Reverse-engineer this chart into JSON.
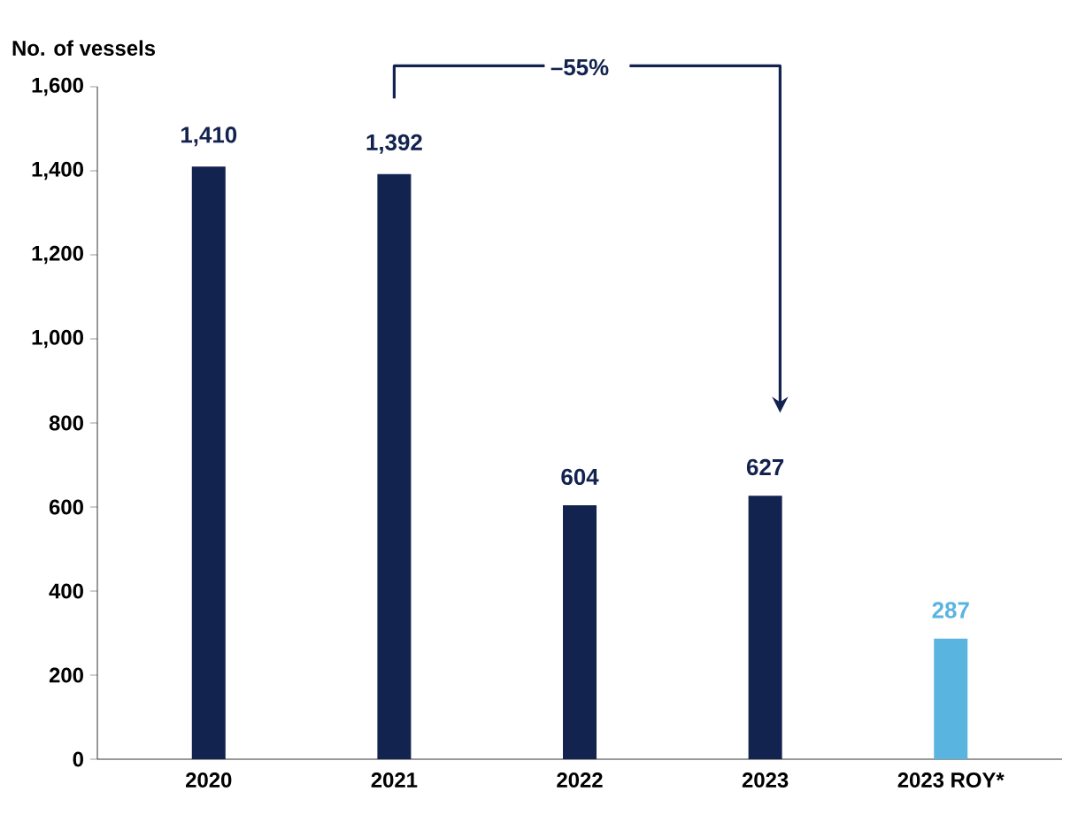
{
  "chart_data": {
    "type": "bar",
    "ylabel": "No. of vessels",
    "categories": [
      "2020",
      "2021",
      "2022",
      "2023",
      "2023 ROY*"
    ],
    "values": [
      1410,
      1392,
      604,
      627,
      287
    ],
    "value_labels": [
      "1,410",
      "1,392",
      "604",
      "627",
      "287"
    ],
    "colors": [
      "#13234f",
      "#13234f",
      "#13234f",
      "#13234f",
      "#5ab4e0"
    ],
    "ylim": [
      0,
      1600
    ],
    "yticks": [
      0,
      200,
      400,
      600,
      800,
      {
        "value": 1000,
        "label": "1,000"
      },
      {
        "value": 1200,
        "label": "1,200"
      },
      {
        "value": 1400,
        "label": "1,400"
      },
      {
        "value": 1600,
        "label": "1,600"
      }
    ],
    "annotations": [
      "–55%"
    ],
    "grid": false
  }
}
